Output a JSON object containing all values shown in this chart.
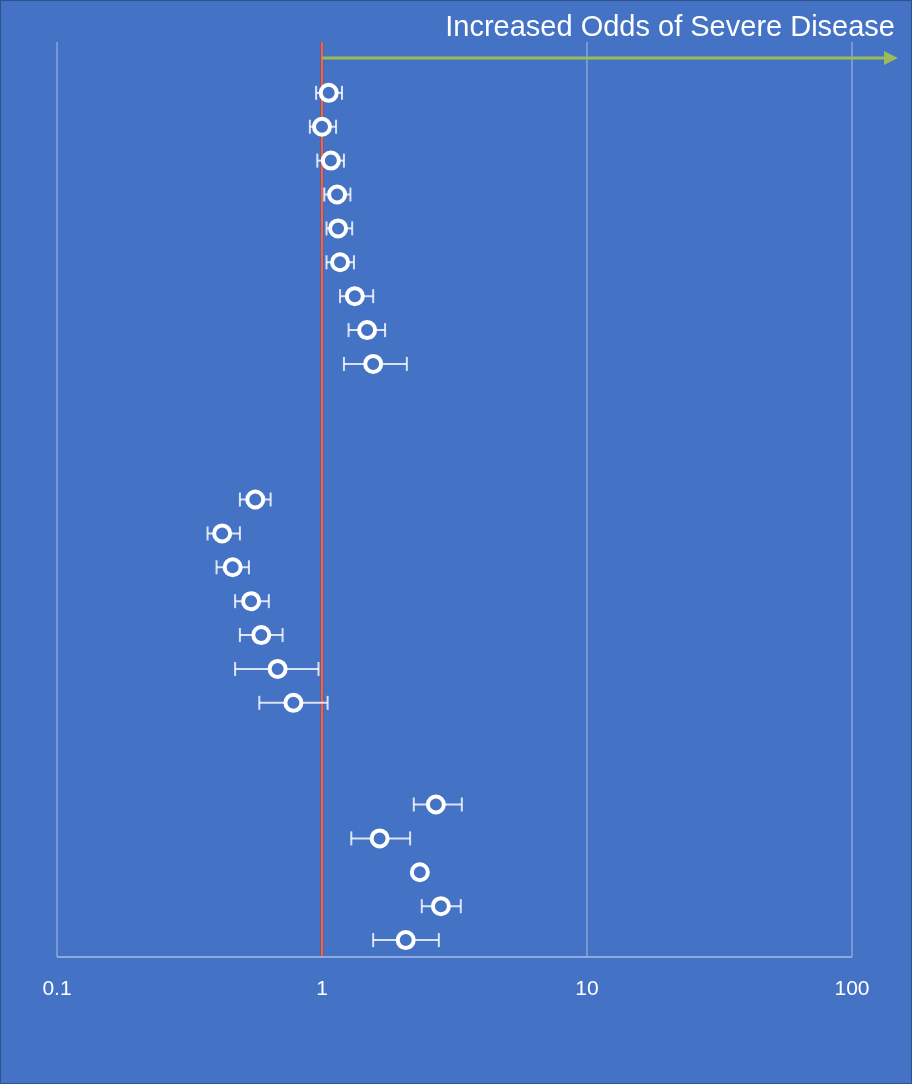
{
  "chart_data": {
    "type": "scatter",
    "orientation": "horizontal",
    "log": "x",
    "grid": "x",
    "marker": "circle",
    "annotations": [
      "Increased Odds of Severe Disease"
    ],
    "categories": [
      null,
      null,
      null,
      null,
      null,
      null,
      null,
      null,
      null,
      null,
      null,
      null,
      null,
      null,
      null,
      null,
      null,
      null,
      null,
      null,
      null,
      null,
      null,
      null,
      null,
      null,
      null
    ],
    "xlim": [
      0.1,
      100
    ],
    "xticks": [
      0.1,
      1,
      10,
      100
    ],
    "ref_lines": [
      {
        "axis": "x",
        "value": 1,
        "color": "#c0392b"
      }
    ],
    "series": [
      {
        "color": "#ffffff",
        "values": [
          null,
          1.06,
          1.0,
          1.08,
          1.14,
          1.15,
          1.17,
          1.33,
          1.48,
          1.56,
          null,
          null,
          null,
          0.56,
          0.42,
          0.46,
          0.54,
          0.59,
          0.68,
          0.78,
          null,
          null,
          2.69,
          1.65,
          2.34,
          2.81,
          2.07
        ],
        "errors": [
          null,
          [
            0.95,
            1.19
          ],
          [
            0.9,
            1.13
          ],
          [
            0.96,
            1.21
          ],
          [
            1.02,
            1.28
          ],
          [
            1.04,
            1.3
          ],
          [
            1.04,
            1.32
          ],
          [
            1.17,
            1.56
          ],
          [
            1.26,
            1.73
          ],
          [
            1.21,
            2.09
          ],
          null,
          null,
          null,
          [
            0.49,
            0.64
          ],
          [
            0.37,
            0.49
          ],
          [
            0.4,
            0.53
          ],
          [
            0.47,
            0.63
          ],
          [
            0.49,
            0.71
          ],
          [
            0.47,
            0.97
          ],
          [
            0.58,
            1.05
          ],
          null,
          null,
          [
            2.22,
            3.37
          ],
          [
            1.29,
            2.15
          ],
          null,
          [
            2.38,
            3.34
          ],
          [
            1.56,
            2.76
          ]
        ]
      }
    ]
  }
}
